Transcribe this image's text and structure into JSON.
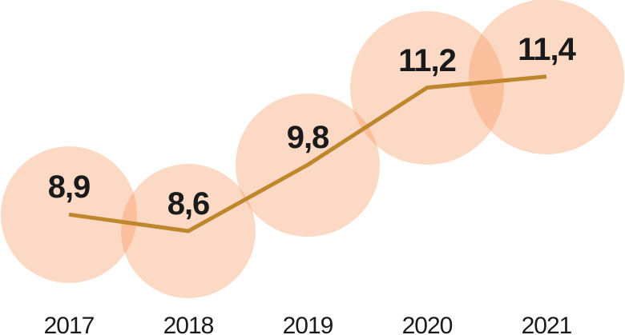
{
  "chart_data": {
    "type": "line",
    "subtype": "bubble-line",
    "categories": [
      "2017",
      "2018",
      "2019",
      "2020",
      "2021"
    ],
    "values": [
      8.9,
      8.6,
      9.8,
      11.2,
      11.4
    ],
    "value_labels": [
      "8,9",
      "8,6",
      "9,8",
      "11,2",
      "11,4"
    ],
    "title": "",
    "xlabel": "",
    "ylabel": "",
    "legend_position": "none",
    "grid": false,
    "axes_visible": false,
    "bubble_size_encoding": "proportional to value",
    "colors": {
      "bubble_fill": "#F69256",
      "bubble_opacity": 0.35,
      "line": "#BE872D",
      "label_text": "#1A1A1A",
      "background": "#FFFFFF"
    }
  }
}
